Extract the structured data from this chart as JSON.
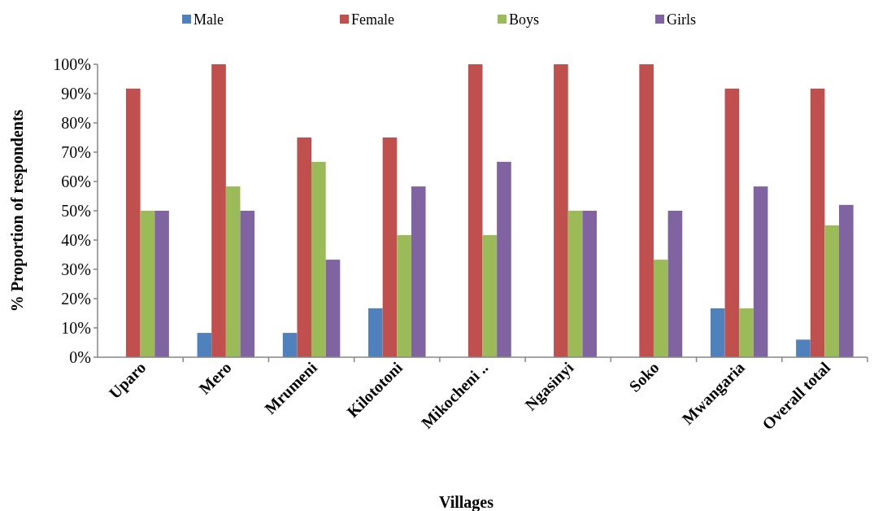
{
  "chart_data": {
    "type": "bar",
    "xlabel": "Villages",
    "ylabel": "% Proportion of respondents",
    "categories": [
      "Uparo",
      "Mero",
      "Mrumeni",
      "Kilototoni",
      "Mikocheni ..",
      "Ngasinyi",
      "Soko",
      "Mwangaria",
      "Overall total"
    ],
    "series": [
      {
        "name": "Male",
        "color": "#4f81bd",
        "values": [
          0,
          8.3,
          8.3,
          16.7,
          0,
          0,
          0,
          16.7,
          6
        ]
      },
      {
        "name": "Female",
        "color": "#c0504d",
        "values": [
          91.7,
          100,
          75,
          75,
          100,
          100,
          100,
          91.7,
          91.7
        ]
      },
      {
        "name": "Boys",
        "color": "#9bbb59",
        "values": [
          50,
          58.3,
          66.7,
          41.7,
          41.7,
          50,
          33.3,
          16.7,
          45
        ]
      },
      {
        "name": "Girls",
        "color": "#8064a2",
        "values": [
          50,
          50,
          33.3,
          58.3,
          66.7,
          50,
          50,
          58.3,
          52
        ]
      }
    ],
    "ylim": [
      0,
      100
    ],
    "yticks": [
      {
        "value": 0,
        "label": "0%"
      },
      {
        "value": 10,
        "label": "10%"
      },
      {
        "value": 20,
        "label": "20%"
      },
      {
        "value": 30,
        "label": "30%"
      },
      {
        "value": 40,
        "label": "40%"
      },
      {
        "value": 50,
        "label": "50%"
      },
      {
        "value": 60,
        "label": "60%"
      },
      {
        "value": 70,
        "label": "70%"
      },
      {
        "value": 80,
        "label": "80%"
      },
      {
        "value": 90,
        "label": "90%"
      },
      {
        "value": 100,
        "label": "100%"
      }
    ],
    "grid": false,
    "legend": "top"
  }
}
